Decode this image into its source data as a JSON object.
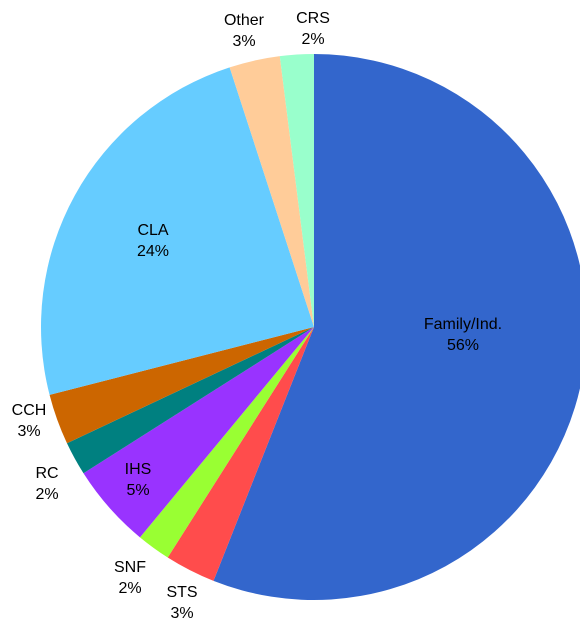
{
  "chart_data": {
    "type": "pie",
    "categories": [
      "Family/Ind.",
      "STS",
      "SNF",
      "IHS",
      "RC",
      "CCH",
      "CLA",
      "Other",
      "CRS"
    ],
    "values": [
      56,
      3,
      2,
      5,
      2,
      3,
      24,
      3,
      2
    ],
    "value_labels": [
      "56%",
      "3%",
      "2%",
      "5%",
      "2%",
      "3%",
      "24%",
      "3%",
      "2%"
    ],
    "colors": [
      "#3366CC",
      "#FF4C4C",
      "#99FF33",
      "#9933FF",
      "#008080",
      "#CC6600",
      "#66CCFF",
      "#FFCC99",
      "#99FFCC"
    ]
  }
}
